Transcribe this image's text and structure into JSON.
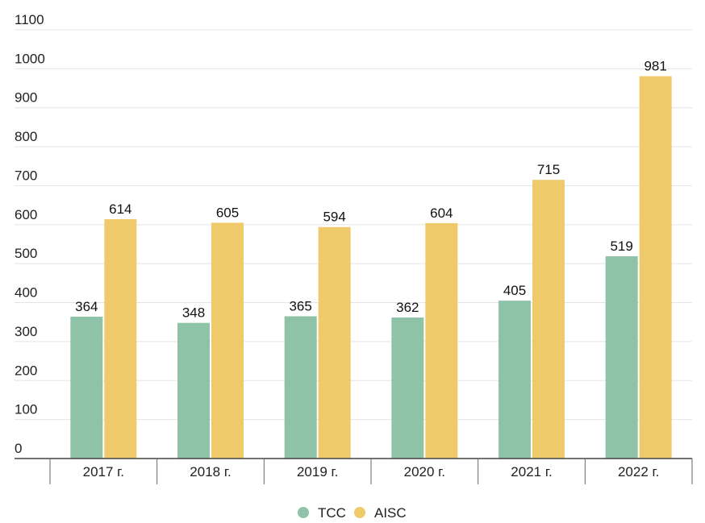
{
  "chart_data": {
    "type": "bar",
    "title": "",
    "xlabel": "",
    "ylabel": "",
    "categories": [
      "2017 г.",
      "2018 г.",
      "2019 г.",
      "2020 г.",
      "2021 г.",
      "2022 г."
    ],
    "series": [
      {
        "name": "TCC",
        "color": "#8ec3a7",
        "values": [
          364,
          348,
          365,
          362,
          405,
          519
        ]
      },
      {
        "name": "AISC",
        "color": "#efca6a",
        "values": [
          614,
          605,
          594,
          604,
          715,
          981
        ]
      }
    ],
    "ylim": [
      0,
      1100
    ],
    "yticks": [
      0,
      100,
      200,
      300,
      400,
      500,
      600,
      700,
      800,
      900,
      1000,
      1100
    ],
    "grid": true,
    "legend_position": "bottom-center",
    "data_labels": true
  }
}
